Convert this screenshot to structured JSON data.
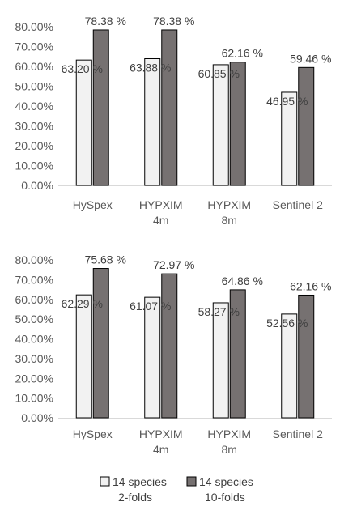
{
  "chart_data": [
    {
      "type": "bar",
      "categories": [
        [
          "HySpex"
        ],
        [
          "HYPXIM",
          "4m"
        ],
        [
          "HYPXIM",
          "8m"
        ],
        [
          "Sentinel 2"
        ]
      ],
      "series": [
        {
          "name": "14 species 2-folds",
          "values": [
            63.2,
            63.88,
            60.85,
            46.95
          ],
          "labels": [
            "63.20 %",
            "63.88 %",
            "60.85 %",
            "46.95 %"
          ],
          "color": "#f2f2f2"
        },
        {
          "name": "14 species 10-folds",
          "values": [
            78.38,
            78.38,
            62.16,
            59.46
          ],
          "labels": [
            "78.38 %",
            "78.38 %",
            "62.16 %",
            "59.46 %"
          ],
          "color": "#767171"
        }
      ],
      "ylim": [
        0,
        80
      ],
      "yticks": [
        "0.00%",
        "10.00%",
        "20.00%",
        "30.00%",
        "40.00%",
        "50.00%",
        "60.00%",
        "70.00%",
        "80.00%"
      ],
      "grid": false
    },
    {
      "type": "bar",
      "categories": [
        [
          "HySpex"
        ],
        [
          "HYPXIM",
          "4m"
        ],
        [
          "HYPXIM",
          "8m"
        ],
        [
          "Sentinel 2"
        ]
      ],
      "series": [
        {
          "name": "14 species 2-folds",
          "values": [
            62.29,
            61.07,
            58.27,
            52.56
          ],
          "labels": [
            "62.29 %",
            "61.07 %",
            "58.27 %",
            "52.56 %"
          ],
          "color": "#f2f2f2"
        },
        {
          "name": "14 species 10-folds",
          "values": [
            75.68,
            72.97,
            64.86,
            62.16
          ],
          "labels": [
            "75.68 %",
            "72.97 %",
            "64.86 %",
            "62.16 %"
          ],
          "color": "#767171"
        }
      ],
      "ylim": [
        0,
        80
      ],
      "yticks": [
        "0.00%",
        "10.00%",
        "20.00%",
        "30.00%",
        "40.00%",
        "50.00%",
        "60.00%",
        "70.00%",
        "80.00%"
      ],
      "grid": false
    }
  ],
  "legend": {
    "placement": "bottom",
    "items": [
      {
        "lines": [
          "14 species",
          "2-folds"
        ],
        "color": "#f2f2f2"
      },
      {
        "lines": [
          "14 species",
          "10-folds"
        ],
        "color": "#767171"
      }
    ]
  }
}
